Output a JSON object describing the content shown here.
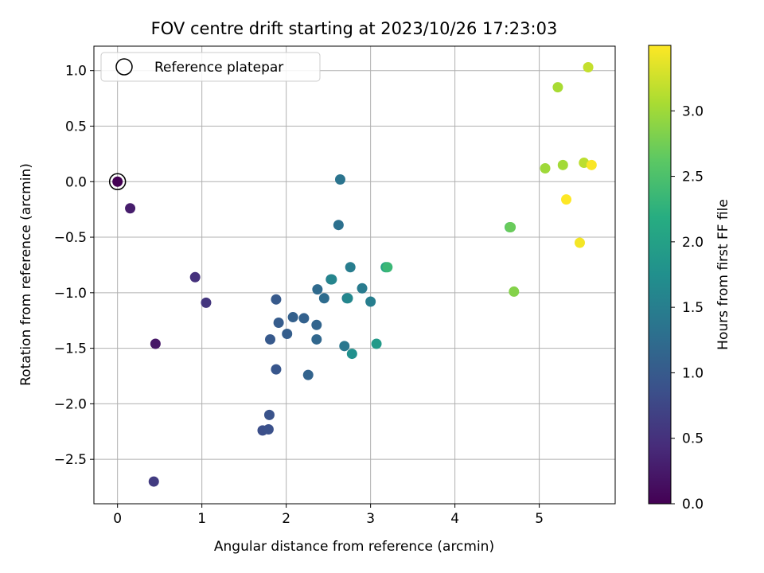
{
  "chart_data": {
    "type": "scatter",
    "title": "FOV centre drift starting at 2023/10/26 17:23:03",
    "xlabel": "Angular distance from reference (arcmin)",
    "ylabel": "Rotation from reference (arcmin)",
    "xlim": [
      -0.28,
      5.9
    ],
    "ylim": [
      -2.9,
      1.22
    ],
    "xticks": [
      0,
      1,
      2,
      3,
      4,
      5
    ],
    "xtick_labels": [
      "0",
      "1",
      "2",
      "3",
      "4",
      "5"
    ],
    "yticks": [
      1.0,
      0.5,
      0.0,
      -0.5,
      -1.0,
      -1.5,
      -2.0,
      -2.5
    ],
    "ytick_labels": [
      "1.0",
      "0.5",
      "0.0",
      "−0.5",
      "−1.0",
      "−1.5",
      "−2.0",
      "−2.5"
    ],
    "grid": true,
    "legend": {
      "position": "top-left",
      "label": "Reference platepar"
    },
    "reference_point": {
      "x": 0,
      "y": 0
    },
    "colorbar": {
      "label": "Hours from first FF file",
      "colormap": "viridis",
      "range": [
        0,
        3.5
      ],
      "ticks": [
        0.0,
        0.5,
        1.0,
        1.5,
        2.0,
        2.5,
        3.0
      ],
      "tick_labels": [
        "0.0",
        "0.5",
        "1.0",
        "1.5",
        "2.0",
        "2.5",
        "3.0"
      ]
    },
    "points": [
      {
        "x": 0.0,
        "y": 0.0,
        "c": 0.0
      },
      {
        "x": 0.15,
        "y": -0.24,
        "c": 0.28
      },
      {
        "x": 0.45,
        "y": -1.46,
        "c": 0.22
      },
      {
        "x": 0.92,
        "y": -0.86,
        "c": 0.5
      },
      {
        "x": 1.05,
        "y": -1.09,
        "c": 0.55
      },
      {
        "x": 0.43,
        "y": -2.7,
        "c": 0.62
      },
      {
        "x": 1.72,
        "y": -2.24,
        "c": 0.85
      },
      {
        "x": 1.79,
        "y": -2.23,
        "c": 0.88
      },
      {
        "x": 1.8,
        "y": -2.1,
        "c": 0.9
      },
      {
        "x": 1.88,
        "y": -1.69,
        "c": 0.95
      },
      {
        "x": 1.81,
        "y": -1.42,
        "c": 0.98
      },
      {
        "x": 1.88,
        "y": -1.06,
        "c": 1.0
      },
      {
        "x": 1.91,
        "y": -1.27,
        "c": 1.02
      },
      {
        "x": 2.01,
        "y": -1.37,
        "c": 1.05
      },
      {
        "x": 2.08,
        "y": -1.22,
        "c": 1.08
      },
      {
        "x": 2.21,
        "y": -1.23,
        "c": 1.1
      },
      {
        "x": 2.26,
        "y": -1.74,
        "c": 1.12
      },
      {
        "x": 2.36,
        "y": -1.29,
        "c": 1.15
      },
      {
        "x": 2.36,
        "y": -1.42,
        "c": 1.18
      },
      {
        "x": 2.37,
        "y": -0.97,
        "c": 1.22
      },
      {
        "x": 2.45,
        "y": -1.05,
        "c": 1.25
      },
      {
        "x": 2.53,
        "y": -0.88,
        "c": 1.45
      },
      {
        "x": 2.54,
        "y": -0.88,
        "c": 1.6
      },
      {
        "x": 2.62,
        "y": -0.39,
        "c": 1.3
      },
      {
        "x": 2.64,
        "y": 0.02,
        "c": 1.35
      },
      {
        "x": 2.69,
        "y": -1.48,
        "c": 1.4
      },
      {
        "x": 2.72,
        "y": -1.05,
        "c": 1.42
      },
      {
        "x": 2.73,
        "y": -1.05,
        "c": 1.62
      },
      {
        "x": 2.76,
        "y": -0.77,
        "c": 1.48
      },
      {
        "x": 2.78,
        "y": -1.55,
        "c": 1.75
      },
      {
        "x": 2.9,
        "y": -0.96,
        "c": 1.45
      },
      {
        "x": 3.0,
        "y": -1.08,
        "c": 1.5
      },
      {
        "x": 3.07,
        "y": -1.46,
        "c": 1.9
      },
      {
        "x": 3.18,
        "y": -0.77,
        "c": 2.05
      },
      {
        "x": 3.2,
        "y": -0.77,
        "c": 2.35
      },
      {
        "x": 4.65,
        "y": -0.41,
        "c": 2.55
      },
      {
        "x": 4.66,
        "y": -0.41,
        "c": 2.7
      },
      {
        "x": 4.7,
        "y": -0.99,
        "c": 2.85
      },
      {
        "x": 5.07,
        "y": 0.12,
        "c": 3.0
      },
      {
        "x": 5.22,
        "y": 0.85,
        "c": 3.05
      },
      {
        "x": 5.28,
        "y": 0.15,
        "c": 3.02
      },
      {
        "x": 5.32,
        "y": -0.16,
        "c": 3.5
      },
      {
        "x": 5.48,
        "y": -0.55,
        "c": 3.45
      },
      {
        "x": 5.53,
        "y": 0.17,
        "c": 3.15
      },
      {
        "x": 5.58,
        "y": 1.03,
        "c": 3.2
      },
      {
        "x": 5.62,
        "y": 0.15,
        "c": 3.48
      }
    ]
  }
}
